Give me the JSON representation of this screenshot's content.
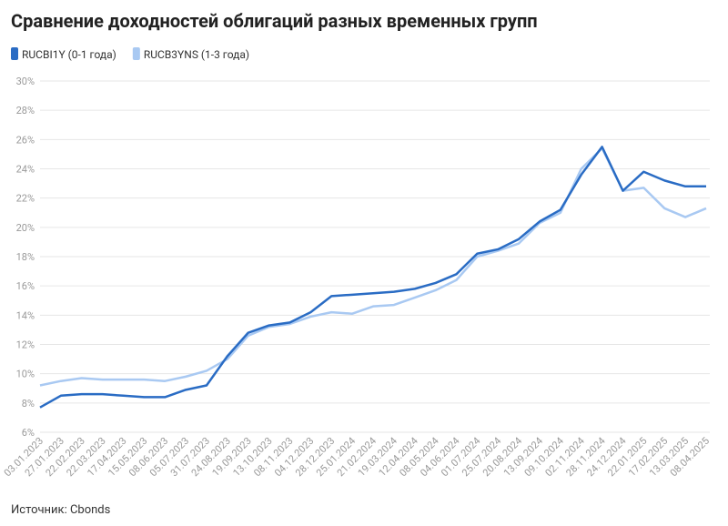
{
  "chart_data": {
    "type": "line",
    "title": "Сравнение доходностей облигаций разных временных групп",
    "source": "Источник: Cbonds",
    "x": [
      "03.01.2023",
      "27.01.2023",
      "22.02.2023",
      "22.03.2023",
      "17.04.2023",
      "15.05.2023",
      "08.06.2023",
      "05.07.2023",
      "31.07.2023",
      "24.08.2023",
      "19.09.2023",
      "13.10.2023",
      "08.11.2023",
      "04.12.2023",
      "28.12.2023",
      "25.01.2024",
      "21.02.2024",
      "19.03.2024",
      "12.04.2024",
      "08.05.2024",
      "04.06.2024",
      "01.07.2024",
      "25.07.2024",
      "20.08.2024",
      "13.09.2024",
      "09.10.2024",
      "02.11.2024",
      "28.11.2024",
      "24.12.2024",
      "22.01.2025",
      "17.02.2025",
      "13.03.2025",
      "08.04.2025"
    ],
    "series": [
      {
        "name": "RUCBI1Y (0-1 года)",
        "color": "#2a6cc4",
        "values": [
          7.7,
          8.5,
          8.6,
          8.6,
          8.5,
          8.4,
          8.4,
          8.9,
          9.2,
          11.2,
          12.8,
          13.3,
          13.5,
          14.2,
          15.3,
          15.4,
          15.5,
          15.6,
          15.8,
          16.2,
          16.8,
          18.2,
          18.5,
          19.2,
          20.4,
          21.2,
          23.6,
          25.5,
          22.5,
          23.8,
          23.2,
          22.8,
          22.8
        ]
      },
      {
        "name": "RUCB3YNS (1-3 года)",
        "color": "#a9c9f2",
        "values": [
          9.2,
          9.5,
          9.7,
          9.6,
          9.6,
          9.6,
          9.5,
          9.8,
          10.2,
          11.0,
          12.6,
          13.2,
          13.4,
          13.9,
          14.2,
          14.1,
          14.6,
          14.7,
          15.2,
          15.7,
          16.4,
          18.0,
          18.4,
          18.9,
          20.3,
          21.0,
          24.0,
          25.4,
          22.5,
          22.7,
          21.3,
          20.7,
          21.3
        ]
      }
    ],
    "ylim": [
      6,
      30
    ],
    "yticks": [
      {
        "value": 6,
        "label": "6%"
      },
      {
        "value": 8,
        "label": "8%"
      },
      {
        "value": 10,
        "label": "10%"
      },
      {
        "value": 12,
        "label": "12%"
      },
      {
        "value": 14,
        "label": "14%"
      },
      {
        "value": 16,
        "label": "16%"
      },
      {
        "value": 18,
        "label": "18%"
      },
      {
        "value": 20,
        "label": "20%"
      },
      {
        "value": 22,
        "label": "22%"
      },
      {
        "value": 24,
        "label": "24%"
      },
      {
        "value": 26,
        "label": "26%"
      },
      {
        "value": 28,
        "label": "28%"
      },
      {
        "value": 30,
        "label": "30%"
      }
    ],
    "grid": true
  }
}
